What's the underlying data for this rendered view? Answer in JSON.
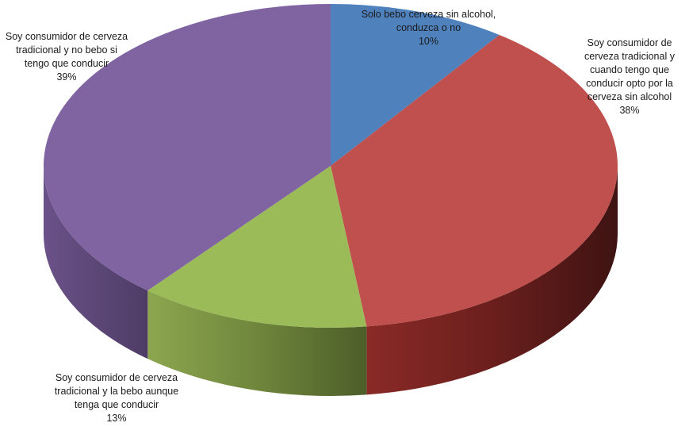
{
  "chart_data": {
    "type": "pie",
    "variant": "3d",
    "title": "",
    "slices": [
      {
        "label": "Solo bebo cerveza sin alcohol, conduzca o no",
        "value": 10,
        "value_label": "10%",
        "color": "#4F81BD"
      },
      {
        "label": "Soy consumidor de cerveza tradicional y cuando tengo que conducir opto por la cerveza sin alcohol",
        "value": 38,
        "value_label": "38%",
        "color": "#C0504D"
      },
      {
        "label": "Soy consumidor de cerveza tradicional y la bebo aunque tenga que conducir",
        "value": 13,
        "value_label": "13%",
        "color": "#9BBB59"
      },
      {
        "label": "Soy consumidor de cerveza tradicional y no bebo si tengo que conducir",
        "value": 39,
        "value_label": "39%",
        "color": "#8064A2"
      }
    ]
  }
}
